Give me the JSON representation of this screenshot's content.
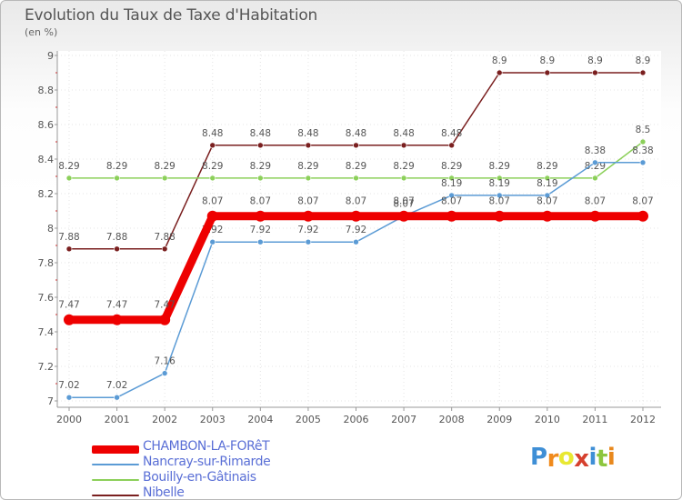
{
  "header": {
    "title": "Evolution du Taux de Taxe d'Habitation",
    "subtitle": "(en %)"
  },
  "logo": {
    "letters": [
      "P",
      "r",
      "o",
      "x",
      "i",
      "t",
      "i"
    ],
    "colors": [
      "#3f8fd6",
      "#f08a1c",
      "#e8e832",
      "#d6402e",
      "#3f8fd6",
      "#8cc63e",
      "#e8881c"
    ]
  },
  "chart_data": {
    "type": "line",
    "title": "Evolution du Taux de Taxe d'Habitation",
    "ylabel": "(en %)",
    "xlabel": "",
    "x": [
      "2000",
      "2001",
      "2002",
      "2003",
      "2004",
      "2005",
      "2006",
      "2007",
      "2008",
      "2009",
      "2010",
      "2011",
      "2012"
    ],
    "ylim": [
      7,
      9
    ],
    "yticks": [
      7,
      7.2,
      7.4,
      7.6,
      7.8,
      8,
      8.2,
      8.4,
      8.6,
      8.8,
      9
    ],
    "grid": true,
    "legend_position": "bottom-left",
    "series": [
      {
        "name": "Nibelle",
        "color": "#7a1f1f",
        "values": [
          7.88,
          7.88,
          7.88,
          8.48,
          8.48,
          8.48,
          8.48,
          8.48,
          8.48,
          8.9,
          8.9,
          8.9,
          8.9
        ],
        "labels": [
          "7.88",
          "7.88",
          "7.88",
          "8.48",
          "8.48",
          "8.48",
          "8.48",
          "8.48",
          "8.48",
          "8.9",
          "8.9",
          "8.9",
          "8.9"
        ]
      },
      {
        "name": "Bouilly-en-Gâtinais",
        "color": "#8cd05a",
        "values": [
          8.29,
          8.29,
          8.29,
          8.29,
          8.29,
          8.29,
          8.29,
          8.29,
          8.29,
          8.29,
          8.29,
          8.29,
          8.5
        ],
        "labels": [
          "8.29",
          "8.29",
          "8.29",
          "8.29",
          "8.29",
          "8.29",
          "8.29",
          "8.29",
          "8.29",
          "8.29",
          "8.29",
          "8.29",
          "8.5"
        ]
      },
      {
        "name": "Nancray-sur-Rimarde",
        "color": "#5b9bd5",
        "values": [
          7.02,
          7.02,
          7.16,
          7.92,
          7.92,
          7.92,
          7.92,
          8.07,
          8.19,
          8.19,
          8.19,
          8.38,
          8.38
        ],
        "labels": [
          "7.02",
          "7.02",
          "7.16",
          "7.92",
          "7.92",
          "7.92",
          "7.92",
          "8.07",
          "8.19",
          "8.19",
          "8.19",
          "8.38",
          "8.38"
        ]
      },
      {
        "name": "CHAMBON-LA-FORêT",
        "color": "#ee0000",
        "values": [
          7.47,
          7.47,
          7.47,
          8.07,
          8.07,
          8.07,
          8.07,
          8.07,
          8.07,
          8.07,
          8.07,
          8.07,
          8.07
        ],
        "labels": [
          "7.47",
          "7.47",
          "7.47",
          "8.07",
          "8.07",
          "8.07",
          "8.07",
          "8.07",
          "8.07",
          "8.07",
          "8.07",
          "8.07",
          "8.07"
        ]
      }
    ]
  }
}
